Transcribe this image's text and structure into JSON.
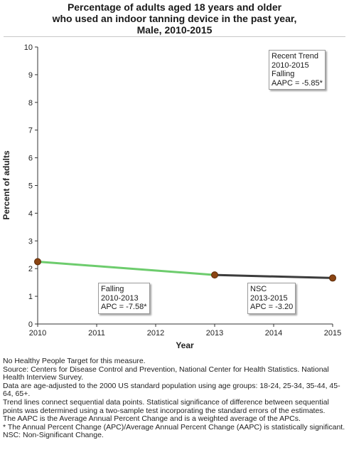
{
  "chart_data": {
    "type": "line",
    "title_lines": [
      "Percentage of adults aged 18 years and older",
      "who used an indoor tanning device in the past year,",
      "Male,  2010-2015"
    ],
    "xlabel": "Year",
    "ylabel": "Percent of adults",
    "xlim": [
      2010,
      2015
    ],
    "ylim": [
      0,
      10
    ],
    "x_ticks": [
      2010,
      2011,
      2012,
      2013,
      2014,
      2015
    ],
    "y_ticks": [
      0,
      1,
      2,
      3,
      4,
      5,
      6,
      7,
      8,
      9,
      10
    ],
    "grid": false,
    "points": [
      {
        "x": 2010,
        "y": 2.25
      },
      {
        "x": 2013,
        "y": 1.77
      },
      {
        "x": 2015,
        "y": 1.66
      }
    ],
    "trend_segments": [
      {
        "x": [
          2010,
          2013
        ],
        "y": [
          2.25,
          1.77
        ],
        "color": "#6dcc6d"
      },
      {
        "x": [
          2013,
          2015
        ],
        "y": [
          1.77,
          1.66
        ],
        "color": "#3c3c3c"
      }
    ],
    "point_color": "#8b4513",
    "annotations": {
      "recent_trend": [
        "Recent Trend",
        "2010-2015",
        "Falling",
        "AAPC = -5.85*"
      ],
      "segment_1": [
        "Falling",
        "2010-2013",
        "APC = -7.58*"
      ],
      "segment_2": [
        "NSC",
        "2013-2015",
        "APC = -3.20"
      ]
    }
  },
  "footnotes": [
    "No Healthy People Target for this measure.",
    "Source: Centers for Disease Control and Prevention, National Center for Health Statistics. National Health Interview Survey.",
    "Data are age-adjusted to the 2000 US standard population using age groups: 18-24, 25-34, 35-44, 45-64, 65+.",
    "Trend lines connect sequential data points. Statistical significance of difference between sequential points was determined using a two-sample test incorporating the standard errors of the estimates.",
    "The AAPC is the Average Annual Percent Change and is a weighted average of the APCs.",
    "* The Annual Percent Change (APC)/Average Annual Percent Change (AAPC) is statistically significant.",
    "NSC: Non-Significant Change."
  ]
}
